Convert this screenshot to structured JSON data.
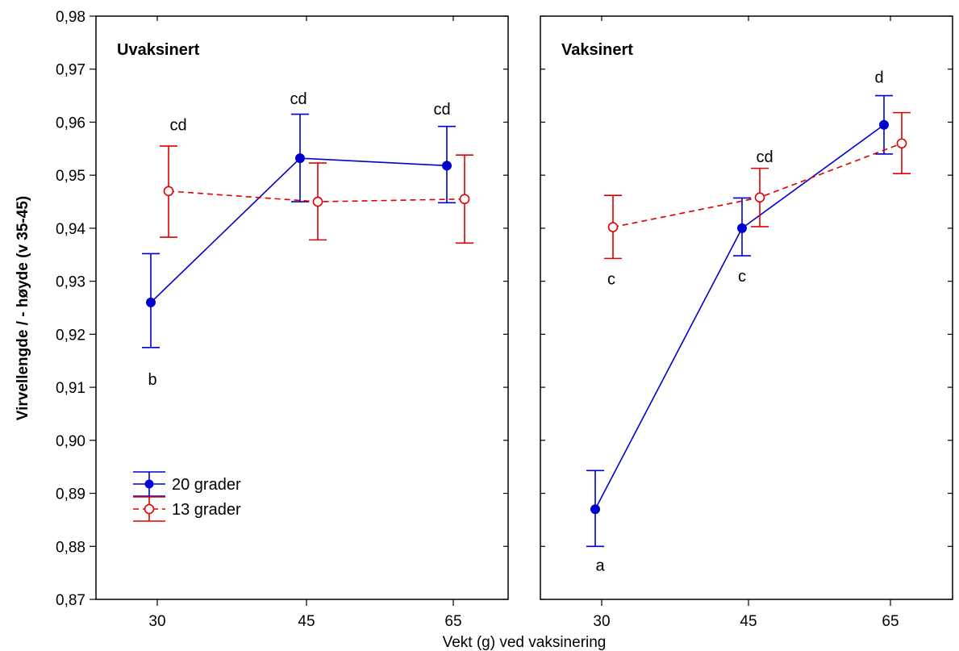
{
  "chart_data": {
    "type": "line",
    "ylabel": "Virvellengde / - høyde (v 35-45)",
    "xlabel": "Vekt (g) ved vaksinering",
    "ylim": [
      0.87,
      0.98
    ],
    "yticks": [
      "0,87",
      "0,88",
      "0,89",
      "0,90",
      "0,91",
      "0,92",
      "0,93",
      "0,94",
      "0,95",
      "0,96",
      "0,97",
      "0,98"
    ],
    "categories": [
      "30",
      "45",
      "65"
    ],
    "legend": {
      "position": "bottom-left of first panel",
      "entries": [
        {
          "name": "20 grader",
          "color": "#0000cc",
          "marker": "filled-circle",
          "line": "solid"
        },
        {
          "name": "13 grader",
          "color": "#e00000",
          "marker": "open-circle",
          "line": "dashed"
        }
      ]
    },
    "panels": [
      {
        "title": "Uvaksinert",
        "series": [
          {
            "name": "20 grader",
            "values": [
              0.926,
              0.9532,
              0.9518
            ],
            "err_low": [
              0.9175,
              0.945,
              0.9448
            ],
            "err_high": [
              0.9352,
              0.9615,
              0.9592
            ]
          },
          {
            "name": "13 grader",
            "values": [
              0.947,
              0.945,
              0.9455
            ],
            "err_low": [
              0.9383,
              0.9378,
              0.9372
            ],
            "err_high": [
              0.9555,
              0.9523,
              0.9538
            ]
          }
        ],
        "annotations": [
          {
            "text": "b",
            "category": "30",
            "y": 0.9115
          },
          {
            "text": "cd",
            "category": "30",
            "y": 0.9595
          },
          {
            "text": "cd",
            "category": "45",
            "y": 0.9645
          },
          {
            "text": "cd",
            "category": "65",
            "y": 0.9625
          }
        ]
      },
      {
        "title": "Vaksinert",
        "series": [
          {
            "name": "20 grader",
            "values": [
              0.887,
              0.94,
              0.9595
            ],
            "err_low": [
              0.88,
              0.9348,
              0.954
            ],
            "err_high": [
              0.8943,
              0.9457,
              0.965
            ]
          },
          {
            "name": "13 grader",
            "values": [
              0.9402,
              0.9458,
              0.956
            ],
            "err_low": [
              0.9343,
              0.9403,
              0.9503
            ],
            "err_high": [
              0.9462,
              0.9513,
              0.9618
            ]
          }
        ],
        "annotations": [
          {
            "text": "a",
            "category": "30",
            "y": 0.8765
          },
          {
            "text": "c",
            "category": "30",
            "y": 0.9305
          },
          {
            "text": "c",
            "category": "45",
            "y": 0.931
          },
          {
            "text": "cd",
            "category": "45",
            "y": 0.9535
          },
          {
            "text": "d",
            "category": "65",
            "y": 0.9685
          }
        ]
      }
    ]
  }
}
